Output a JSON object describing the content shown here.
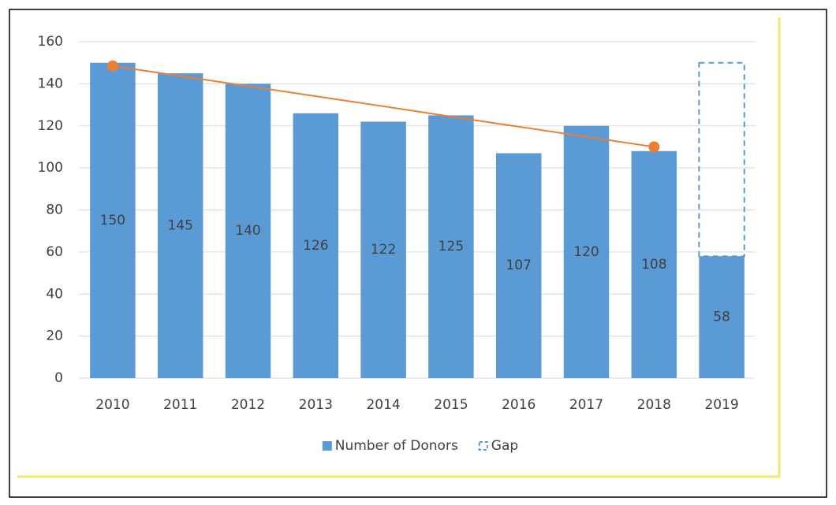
{
  "chart_data": {
    "type": "bar",
    "categories": [
      "2010",
      "2011",
      "2012",
      "2013",
      "2014",
      "2015",
      "2016",
      "2017",
      "2018",
      "2019"
    ],
    "series": [
      {
        "name": "Number of Donors",
        "color": "#5b9bd5",
        "values": [
          150,
          145,
          140,
          126,
          122,
          125,
          107,
          120,
          108,
          58
        ],
        "data_labels": true
      },
      {
        "name": "Gap",
        "color": "#5b9bd5",
        "style": "dashed",
        "values": [
          null,
          null,
          null,
          null,
          null,
          null,
          null,
          null,
          null,
          92
        ]
      }
    ],
    "trend": {
      "color": "#ed7d31",
      "values": [
        148.5,
        143.7,
        138.9,
        134.1,
        129.3,
        124.4,
        119.6,
        114.8,
        110,
        null
      ]
    },
    "stacked": true,
    "ylim": [
      0,
      160
    ],
    "yticks": [
      0,
      20,
      40,
      60,
      80,
      100,
      120,
      140,
      160
    ],
    "grid": true,
    "legend": "bottom"
  }
}
